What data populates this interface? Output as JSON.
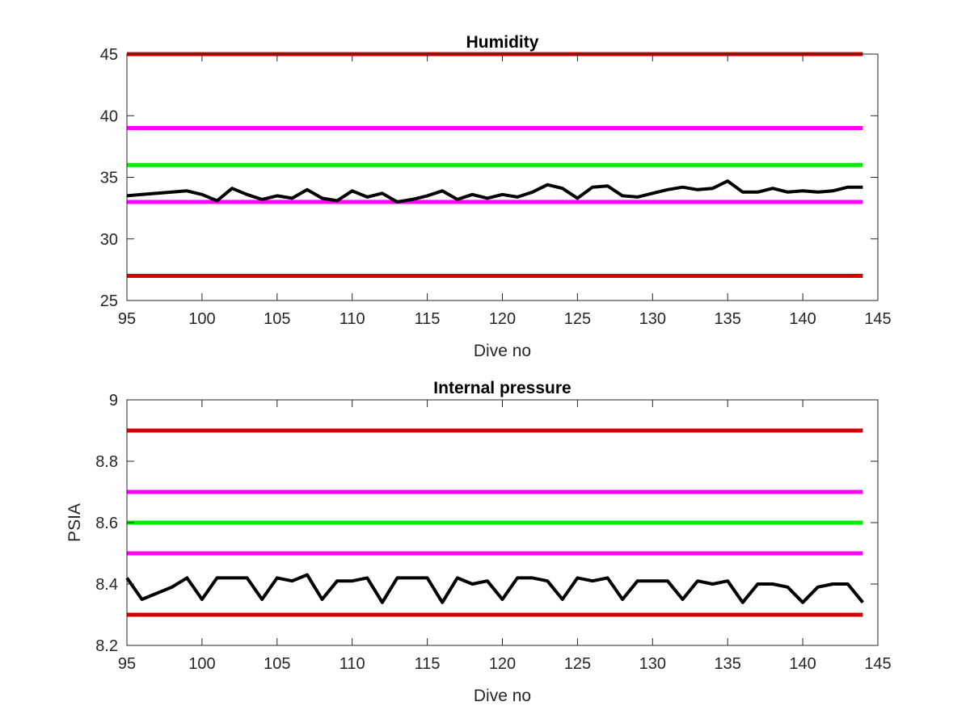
{
  "colors": {
    "red": "#d40000",
    "magenta": "#ff00ff",
    "green": "#00ee00",
    "black": "#000000",
    "axis": "#262626"
  },
  "chart_data": [
    {
      "type": "line",
      "title": "Humidity",
      "xlabel": "Dive no",
      "ylabel": "",
      "xlim": [
        95,
        145
      ],
      "ylim": [
        25,
        45
      ],
      "xticks": [
        95,
        100,
        105,
        110,
        115,
        120,
        125,
        130,
        135,
        140,
        145
      ],
      "yticks": [
        25,
        30,
        35,
        40,
        45
      ],
      "grid": false,
      "box": true,
      "thresholds": [
        {
          "y": 45,
          "color": "red",
          "x": [
            95,
            144
          ]
        },
        {
          "y": 39,
          "color": "magenta",
          "x": [
            95,
            144
          ]
        },
        {
          "y": 36,
          "color": "green",
          "x": [
            95,
            144
          ]
        },
        {
          "y": 33,
          "color": "magenta",
          "x": [
            95,
            144
          ]
        },
        {
          "y": 27,
          "color": "red",
          "x": [
            95,
            144
          ]
        }
      ],
      "series": [
        {
          "color": "black",
          "x": [
            95,
            96,
            97,
            98,
            99,
            100,
            101,
            102,
            103,
            104,
            105,
            106,
            107,
            108,
            109,
            110,
            111,
            112,
            113,
            114,
            115,
            116,
            117,
            118,
            119,
            120,
            121,
            122,
            123,
            124,
            125,
            126,
            127,
            128,
            129,
            130,
            131,
            132,
            133,
            134,
            135,
            136,
            137,
            138,
            139,
            140,
            141,
            142,
            143,
            144
          ],
          "values": [
            33.5,
            33.6,
            33.7,
            33.8,
            33.9,
            33.6,
            33.1,
            34.1,
            33.6,
            33.2,
            33.5,
            33.3,
            34.0,
            33.3,
            33.1,
            33.9,
            33.4,
            33.7,
            33.0,
            33.2,
            33.5,
            33.9,
            33.2,
            33.6,
            33.3,
            33.6,
            33.4,
            33.8,
            34.4,
            34.1,
            33.3,
            34.2,
            34.3,
            33.5,
            33.4,
            33.7,
            34.0,
            34.2,
            34.0,
            34.1,
            34.7,
            33.8,
            33.8,
            34.1,
            33.8,
            33.9,
            33.8,
            33.9,
            34.2,
            34.2
          ]
        }
      ]
    },
    {
      "type": "line",
      "title": "Internal pressure",
      "xlabel": "Dive no",
      "ylabel": "PSIA",
      "xlim": [
        95,
        145
      ],
      "ylim": [
        8.2,
        9
      ],
      "xticks": [
        95,
        100,
        105,
        110,
        115,
        120,
        125,
        130,
        135,
        140,
        145
      ],
      "yticks": [
        8.2,
        8.4,
        8.6,
        8.8,
        9
      ],
      "grid": false,
      "box": true,
      "thresholds": [
        {
          "y": 8.9,
          "color": "red",
          "x": [
            95,
            144
          ]
        },
        {
          "y": 8.7,
          "color": "magenta",
          "x": [
            95,
            144
          ]
        },
        {
          "y": 8.6,
          "color": "green",
          "x": [
            95,
            144
          ]
        },
        {
          "y": 8.5,
          "color": "magenta",
          "x": [
            95,
            144
          ]
        },
        {
          "y": 8.3,
          "color": "red",
          "x": [
            95,
            144
          ]
        }
      ],
      "series": [
        {
          "color": "black",
          "x": [
            95,
            96,
            97,
            98,
            99,
            100,
            101,
            102,
            103,
            104,
            105,
            106,
            107,
            108,
            109,
            110,
            111,
            112,
            113,
            114,
            115,
            116,
            117,
            118,
            119,
            120,
            121,
            122,
            123,
            124,
            125,
            126,
            127,
            128,
            129,
            130,
            131,
            132,
            133,
            134,
            135,
            136,
            137,
            138,
            139,
            140,
            141,
            142,
            143,
            144
          ],
          "values": [
            8.42,
            8.35,
            8.37,
            8.39,
            8.42,
            8.35,
            8.42,
            8.42,
            8.42,
            8.35,
            8.42,
            8.41,
            8.43,
            8.35,
            8.41,
            8.41,
            8.42,
            8.34,
            8.42,
            8.42,
            8.42,
            8.34,
            8.42,
            8.4,
            8.41,
            8.35,
            8.42,
            8.42,
            8.41,
            8.35,
            8.42,
            8.41,
            8.42,
            8.35,
            8.41,
            8.41,
            8.41,
            8.35,
            8.41,
            8.4,
            8.41,
            8.34,
            8.4,
            8.4,
            8.39,
            8.34,
            8.39,
            8.4,
            8.4,
            8.34
          ]
        }
      ]
    }
  ]
}
